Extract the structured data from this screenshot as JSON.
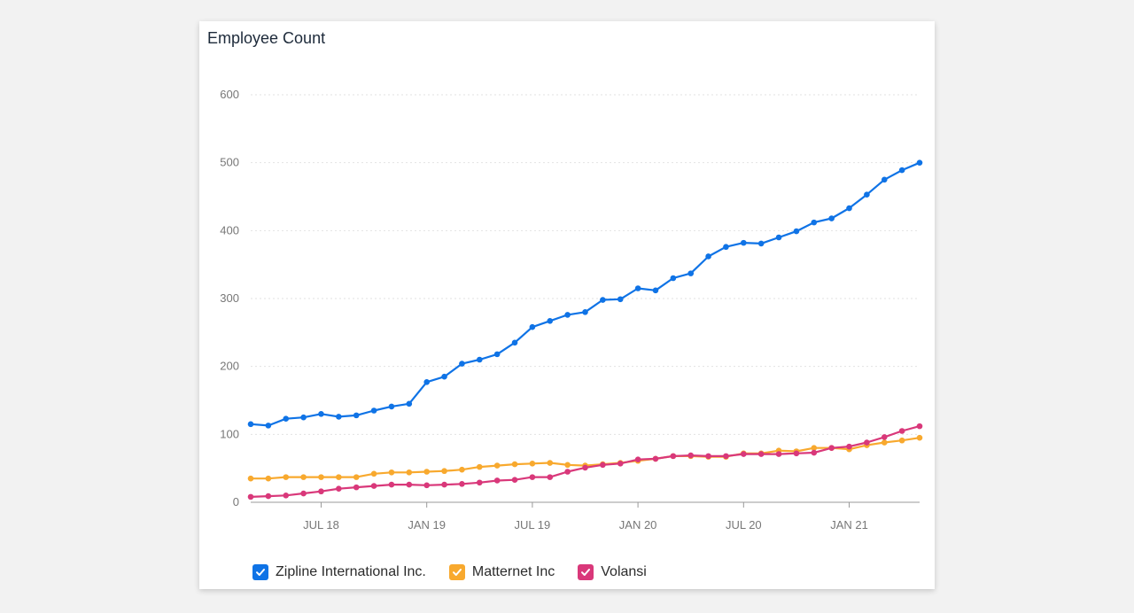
{
  "title": "Employee Count",
  "chart_data": {
    "type": "line",
    "title": "Employee Count",
    "xlabel": "",
    "ylabel": "",
    "ylim": [
      0,
      600
    ],
    "y_ticks": [
      0,
      100,
      200,
      300,
      400,
      500,
      600
    ],
    "x_tick_labels": [
      "JUL 18",
      "JAN 19",
      "JUL 19",
      "JAN 20",
      "JUL 20",
      "JAN 21"
    ],
    "x_tick_index": [
      4,
      10,
      16,
      22,
      28,
      34
    ],
    "grid": "horizontal dotted",
    "legend_position": "bottom-left",
    "series": [
      {
        "name": "Zipline International Inc.",
        "color": "#0f73e6",
        "values": [
          115,
          113,
          123,
          125,
          130,
          126,
          128,
          135,
          141,
          145,
          177,
          185,
          204,
          210,
          218,
          235,
          258,
          267,
          276,
          280,
          298,
          299,
          315,
          312,
          330,
          337,
          362,
          376,
          382,
          381,
          390,
          399,
          412,
          418,
          433,
          453,
          475,
          489,
          500
        ]
      },
      {
        "name": "Matternet Inc",
        "color": "#f8a92e",
        "values": [
          35,
          35,
          37,
          37,
          37,
          37,
          37,
          42,
          44,
          44,
          45,
          46,
          48,
          52,
          54,
          56,
          57,
          58,
          55,
          54,
          56,
          58,
          61,
          64,
          68,
          68,
          67,
          67,
          72,
          72,
          76,
          75,
          80,
          80,
          78,
          84,
          88,
          91,
          95
        ]
      },
      {
        "name": "Volansi",
        "color": "#d9387a",
        "values": [
          8,
          9,
          10,
          13,
          16,
          20,
          22,
          24,
          26,
          26,
          25,
          26,
          27,
          29,
          32,
          33,
          37,
          37,
          45,
          51,
          55,
          57,
          63,
          64,
          68,
          69,
          68,
          68,
          71,
          71,
          71,
          72,
          73,
          80,
          82,
          88,
          96,
          105,
          112
        ]
      }
    ]
  },
  "legend": [
    {
      "label": "Zipline International Inc.",
      "color": "#0f73e6",
      "checked": true
    },
    {
      "label": "Matternet Inc",
      "color": "#f8a92e",
      "checked": true
    },
    {
      "label": "Volansi",
      "color": "#d9387a",
      "checked": true
    }
  ]
}
